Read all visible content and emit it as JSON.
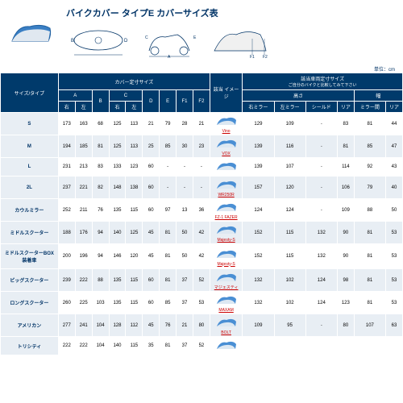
{
  "title": "バイクカバー タイプE カバーサイズ表",
  "unit_note": "単位：cm",
  "colors": {
    "header_bg": "#003a6b",
    "header_text": "#ffffff",
    "label_bg": "#e8eef4",
    "label_text": "#003366",
    "row_alt": "#e8eef4",
    "link": "#cc0000"
  },
  "diagram_labels": {
    "B": "B",
    "D": "D",
    "A": "A",
    "C": "C",
    "E": "E",
    "F1": "F1",
    "F2": "F2"
  },
  "header_groups": {
    "size_type": "サイズ/タイプ",
    "cover_dims": "カバー定寸サイズ",
    "image": "該当\nイメージ",
    "vehicle_dims": "該当車両定寸サイズ",
    "vehicle_note": "ご自分のバイクと比較してみて下さい"
  },
  "sub_headers": {
    "A": "A",
    "B": "B",
    "C": "C",
    "D": "D",
    "E": "E",
    "F1": "F1",
    "F2": "F2",
    "right": "右",
    "left": "左",
    "height": "高さ",
    "width": "幅",
    "r_mirror": "右ミラー",
    "l_mirror": "左ミラー",
    "shield": "シールド",
    "rear": "リア",
    "mirror_w": "ミラー間",
    "rear_w": "リア"
  },
  "rows": [
    {
      "label": "S",
      "vals": [
        "173",
        "163",
        "68",
        "125",
        "113",
        "21",
        "79",
        "28",
        "21"
      ],
      "bike": "Vino",
      "dims": [
        "129",
        "109",
        "-",
        "83",
        "81",
        "44"
      ]
    },
    {
      "label": "M",
      "vals": [
        "194",
        "185",
        "81",
        "125",
        "113",
        "25",
        "85",
        "30",
        "23"
      ],
      "bike": "VOX",
      "dims": [
        "139",
        "116",
        "-",
        "81",
        "85",
        "47"
      ]
    },
    {
      "label": "L",
      "vals": [
        "231",
        "213",
        "83",
        "133",
        "123",
        "60",
        "-",
        "-",
        "-"
      ],
      "bike": "",
      "dims": [
        "139",
        "107",
        "-",
        "114",
        "92",
        "43"
      ]
    },
    {
      "label": "2L",
      "vals": [
        "237",
        "221",
        "82",
        "148",
        "138",
        "60",
        "-",
        "-",
        "-"
      ],
      "bike": "WR250R",
      "dims": [
        "157",
        "120",
        "-",
        "106",
        "79",
        "40"
      ]
    },
    {
      "label": "カウルミラー",
      "vals": [
        "252",
        "211",
        "76",
        "135",
        "115",
        "60",
        "97",
        "13",
        "36"
      ],
      "bike": "FZ-1 FAZER",
      "dims": [
        "124",
        "124",
        "-",
        "109",
        "88",
        "50"
      ]
    },
    {
      "label": "ミドルスクーター",
      "vals": [
        "188",
        "176",
        "94",
        "140",
        "125",
        "45",
        "81",
        "50",
        "42"
      ],
      "bike": "Majesty-S",
      "dims": [
        "152",
        "115",
        "132",
        "90",
        "81",
        "53"
      ]
    },
    {
      "label": "ミドルスクーターBOX装着車",
      "vals": [
        "200",
        "196",
        "94",
        "146",
        "120",
        "45",
        "81",
        "50",
        "42"
      ],
      "bike": "Majesty-S",
      "dims": [
        "152",
        "115",
        "132",
        "90",
        "81",
        "53"
      ]
    },
    {
      "label": "ビッグスクーター",
      "vals": [
        "239",
        "222",
        "88",
        "135",
        "115",
        "60",
        "81",
        "37",
        "52"
      ],
      "bike": "マジェスティ",
      "dims": [
        "132",
        "102",
        "124",
        "98",
        "81",
        "53"
      ]
    },
    {
      "label": "ロングスクーター",
      "vals": [
        "260",
        "225",
        "103",
        "135",
        "115",
        "60",
        "85",
        "37",
        "53"
      ],
      "bike": "MAXAM",
      "dims": [
        "132",
        "102",
        "124",
        "123",
        "81",
        "53"
      ]
    },
    {
      "label": "アメリカン",
      "vals": [
        "277",
        "241",
        "104",
        "128",
        "112",
        "45",
        "76",
        "21",
        "80"
      ],
      "bike": "BOLT",
      "dims": [
        "109",
        "95",
        "-",
        "80",
        "107",
        "63"
      ]
    },
    {
      "label": "トリシティ",
      "vals": [
        "222",
        "222",
        "104",
        "140",
        "115",
        "35",
        "81",
        "37",
        "52"
      ],
      "bike": "",
      "dims": [
        "",
        "",
        "",
        "",
        "",
        ""
      ]
    }
  ]
}
